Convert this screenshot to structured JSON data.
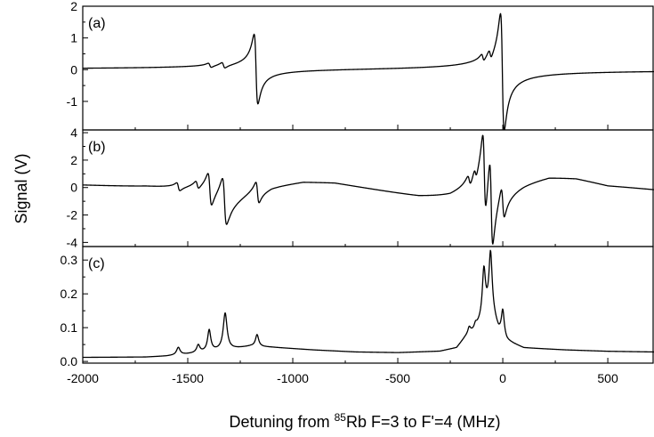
{
  "chart_data": {
    "type": "line",
    "xlabel_prefix": "Detuning from ",
    "xlabel_sup": "85",
    "xlabel_suffix": "Rb F=3 to F'=4 (MHz)",
    "ylabel": "Signal (V)",
    "xlim": [
      -2000,
      720
    ],
    "xticks": [
      -2000,
      -1500,
      -1000,
      -500,
      0,
      500
    ],
    "xtick_labels": [
      "-2000",
      "-1500",
      "-1000",
      "-500",
      "0",
      "500"
    ],
    "panels": [
      {
        "label": "(a)",
        "ylim": [
          -1.9,
          2.0
        ],
        "yticks": [
          -1,
          0,
          1,
          2
        ],
        "ytick_labels": [
          "-1",
          "0",
          "1",
          "2"
        ],
        "baseline": 0,
        "features": [
          {
            "type": "disp",
            "x0": -1395,
            "amp": 0.07,
            "w": 8
          },
          {
            "type": "disp",
            "x0": -1330,
            "amp": 0.09,
            "w": 8
          },
          {
            "type": "disp",
            "x0": -1175,
            "amp": 1.1,
            "w": 9
          },
          {
            "type": "disp",
            "x0": -95,
            "amp": 0.12,
            "w": 7
          },
          {
            "type": "disp",
            "x0": -60,
            "amp": 0.15,
            "w": 7
          },
          {
            "type": "disp",
            "x0": -2,
            "amp": 1.85,
            "w": 9
          }
        ]
      },
      {
        "label": "(b)",
        "ylim": [
          -4.3,
          4.2
        ],
        "yticks": [
          -4,
          -2,
          0,
          2,
          4
        ],
        "ytick_labels": [
          "-4",
          "-2",
          "0",
          "2",
          "4"
        ],
        "baseline": 0,
        "curve": [
          [
            -2000,
            0.0
          ],
          [
            -1700,
            -0.2
          ],
          [
            -1560,
            -0.4
          ],
          [
            -1450,
            -0.5
          ],
          [
            -1300,
            -0.9
          ],
          [
            -1200,
            -0.3
          ],
          [
            -1100,
            0.2
          ],
          [
            -950,
            0.45
          ],
          [
            -800,
            0.3
          ],
          [
            -600,
            -0.3
          ],
          [
            -400,
            -0.9
          ],
          [
            -250,
            -1.1
          ],
          [
            -150,
            -0.8
          ],
          [
            -60,
            0.0
          ],
          [
            0,
            0.5
          ],
          [
            100,
            0.9
          ],
          [
            220,
            1.2
          ],
          [
            350,
            1.0
          ],
          [
            500,
            0.4
          ],
          [
            720,
            0.05
          ]
        ],
        "features": [
          {
            "type": "disp",
            "x0": -1545,
            "amp": 0.3,
            "w": 8
          },
          {
            "type": "disp",
            "x0": -1455,
            "amp": 0.3,
            "w": 8
          },
          {
            "type": "disp",
            "x0": -1395,
            "amp": 1.2,
            "w": 9
          },
          {
            "type": "disp",
            "x0": -1325,
            "amp": 1.7,
            "w": 10
          },
          {
            "type": "disp",
            "x0": -1168,
            "amp": 0.8,
            "w": 8
          },
          {
            "type": "disp",
            "x0": -160,
            "amp": 0.4,
            "w": 8
          },
          {
            "type": "disp",
            "x0": -130,
            "amp": 0.4,
            "w": 7
          },
          {
            "type": "disp",
            "x0": -88,
            "amp": 3.0,
            "w": 8
          },
          {
            "type": "disp",
            "x0": -55,
            "amp": 3.3,
            "w": 8
          },
          {
            "type": "disp",
            "x0": 0,
            "amp": 1.2,
            "w": 8
          }
        ]
      },
      {
        "label": "(c)",
        "ylim": [
          -0.005,
          0.34
        ],
        "yticks": [
          0.0,
          0.1,
          0.2,
          0.3
        ],
        "ytick_labels": [
          "0.0",
          "0.1",
          "0.2",
          "0.3"
        ],
        "curve": [
          [
            -2000,
            0.012
          ],
          [
            -1700,
            0.013
          ],
          [
            -1600,
            0.016
          ],
          [
            -1500,
            0.022
          ],
          [
            -1400,
            0.03
          ],
          [
            -1300,
            0.036
          ],
          [
            -1200,
            0.045
          ],
          [
            -1100,
            0.042
          ],
          [
            -900,
            0.034
          ],
          [
            -700,
            0.028
          ],
          [
            -500,
            0.026
          ],
          [
            -300,
            0.03
          ],
          [
            -220,
            0.04
          ],
          [
            -180,
            0.07
          ],
          [
            -140,
            0.09
          ],
          [
            -100,
            0.12
          ],
          [
            -60,
            0.16
          ],
          [
            -20,
            0.09
          ],
          [
            20,
            0.06
          ],
          [
            100,
            0.04
          ],
          [
            300,
            0.034
          ],
          [
            500,
            0.03
          ],
          [
            720,
            0.028
          ]
        ],
        "features": [
          {
            "type": "peak",
            "x0": -1545,
            "amp": 0.022,
            "w": 10
          },
          {
            "type": "peak",
            "x0": -1450,
            "amp": 0.022,
            "w": 9
          },
          {
            "type": "peak",
            "x0": -1398,
            "amp": 0.062,
            "w": 9
          },
          {
            "type": "peak",
            "x0": -1322,
            "amp": 0.108,
            "w": 11
          },
          {
            "type": "peak",
            "x0": -1170,
            "amp": 0.035,
            "w": 9
          },
          {
            "type": "peak",
            "x0": -160,
            "amp": 0.02,
            "w": 8
          },
          {
            "type": "peak",
            "x0": -130,
            "amp": 0.012,
            "w": 7
          },
          {
            "type": "peak",
            "x0": -90,
            "amp": 0.14,
            "w": 9
          },
          {
            "type": "peak",
            "x0": -58,
            "amp": 0.16,
            "w": 9
          },
          {
            "type": "peak",
            "x0": 0,
            "amp": 0.075,
            "w": 8
          }
        ]
      }
    ]
  }
}
